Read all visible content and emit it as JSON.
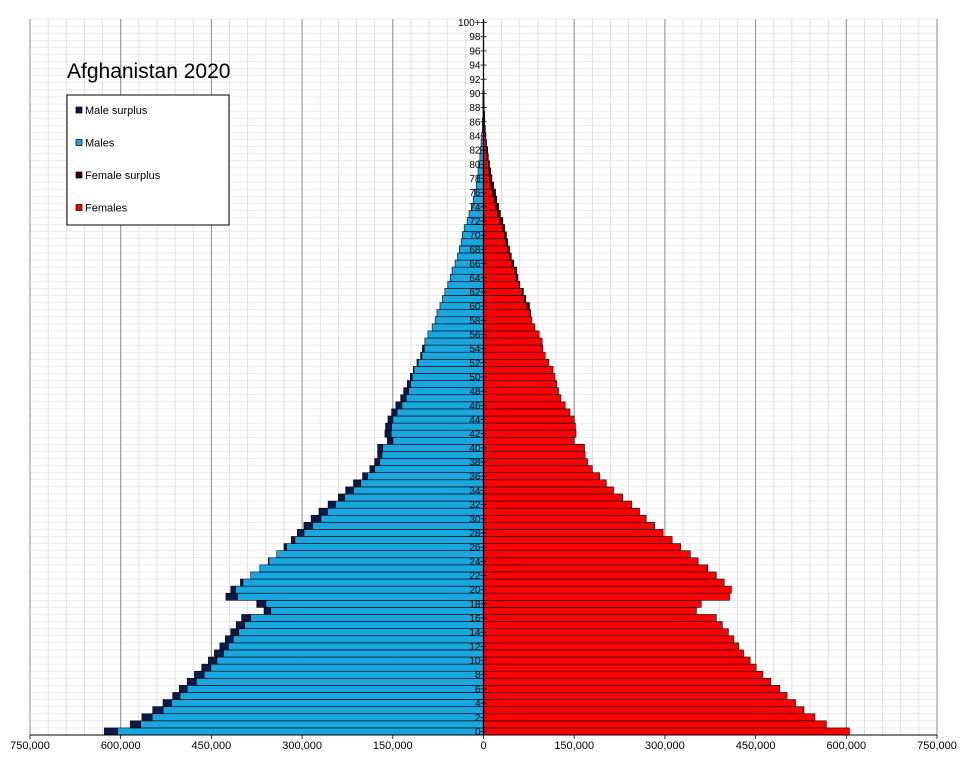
{
  "chart_data": {
    "type": "bar",
    "orientation": "horizontal",
    "title": "Afghanistan 2020",
    "xlim": [
      -750000,
      750000
    ],
    "x_ticks": [
      -750000,
      -600000,
      -450000,
      -300000,
      -150000,
      0,
      150000,
      300000,
      450000,
      600000,
      750000
    ],
    "x_tick_labels": [
      "750,000",
      "600,000",
      "450,000",
      "300,000",
      "150,000",
      "0",
      "150,000",
      "300,000",
      "450,000",
      "600,000",
      "750,000"
    ],
    "y_tick_labels": [
      "0",
      "2",
      "4",
      "6",
      "8",
      "10",
      "12",
      "14",
      "16",
      "18",
      "20",
      "22",
      "24",
      "26",
      "28",
      "30",
      "32",
      "34",
      "36",
      "38",
      "40",
      "42",
      "44",
      "46",
      "48",
      "50",
      "52",
      "54",
      "56",
      "58",
      "60",
      "62",
      "64",
      "66",
      "68",
      "70",
      "72",
      "74",
      "76",
      "78",
      "80",
      "82",
      "84",
      "86",
      "88",
      "90",
      "92",
      "94",
      "96",
      "98",
      "100+"
    ],
    "legend": {
      "position": "top-left",
      "entries": [
        {
          "label": "Male surplus",
          "color": "#0a1a4a"
        },
        {
          "label": "Males",
          "color": "#1aa7e0"
        },
        {
          "label": "Female surplus",
          "color": "#3a0000"
        },
        {
          "label": "Females",
          "color": "#ff0000"
        }
      ]
    },
    "colors": {
      "males": "#1aa7e0",
      "females": "#ff0000",
      "male_surplus": "#0a1a4a",
      "female_surplus": "#3a0000"
    },
    "grid": true,
    "ages": [
      0,
      1,
      2,
      3,
      4,
      5,
      6,
      7,
      8,
      9,
      10,
      11,
      12,
      13,
      14,
      15,
      16,
      17,
      18,
      19,
      20,
      21,
      22,
      23,
      24,
      25,
      26,
      27,
      28,
      29,
      30,
      31,
      32,
      33,
      34,
      35,
      36,
      37,
      38,
      39,
      40,
      41,
      42,
      43,
      44,
      45,
      46,
      47,
      48,
      49,
      50,
      51,
      52,
      53,
      54,
      55,
      56,
      57,
      58,
      59,
      60,
      61,
      62,
      63,
      64,
      65,
      66,
      67,
      68,
      69,
      70,
      71,
      72,
      73,
      74,
      75,
      76,
      77,
      78,
      79,
      80,
      81,
      82,
      83,
      84,
      85,
      86,
      87,
      88,
      89,
      90,
      91,
      92,
      93,
      94,
      95,
      96,
      97,
      98,
      99,
      100
    ],
    "series": [
      {
        "name": "Males",
        "values": [
          627000,
          584000,
          565000,
          547000,
          530000,
          514000,
          503000,
          490000,
          478000,
          466000,
          455000,
          445000,
          436000,
          427000,
          418000,
          409000,
          400000,
          363000,
          375000,
          426000,
          418000,
          402000,
          385000,
          370000,
          356000,
          342000,
          330000,
          318000,
          308000,
          297000,
          285000,
          272000,
          257000,
          240000,
          228000,
          215000,
          200000,
          188000,
          180000,
          175000,
          175000,
          159000,
          163000,
          162000,
          158000,
          152000,
          145000,
          137000,
          132000,
          126000,
          121000,
          116000,
          110000,
          104000,
          101000,
          97000,
          92000,
          85000,
          80000,
          77000,
          72000,
          68000,
          64000,
          59000,
          55000,
          52000,
          47000,
          43000,
          40000,
          37000,
          35000,
          32000,
          27000,
          24000,
          20000,
          17000,
          15000,
          12000,
          10000,
          9000,
          8000,
          6000,
          5000,
          4000,
          3000,
          2000,
          2000,
          1000,
          1000,
          1000,
          1000,
          0,
          0,
          0,
          0,
          0,
          0,
          0,
          0,
          0,
          0
        ]
      },
      {
        "name": "Females",
        "values": [
          605000,
          567000,
          548000,
          530000,
          516000,
          502000,
          490000,
          475000,
          462000,
          451000,
          441000,
          430000,
          422000,
          414000,
          405000,
          395000,
          385000,
          352000,
          360000,
          407000,
          410000,
          398000,
          385000,
          371000,
          355000,
          342000,
          326000,
          312000,
          297000,
          283000,
          269000,
          258000,
          245000,
          230000,
          215000,
          203000,
          192000,
          180000,
          172000,
          168000,
          167000,
          150000,
          153000,
          152000,
          150000,
          143000,
          135000,
          128000,
          124000,
          121000,
          118000,
          115000,
          108000,
          102000,
          98000,
          97000,
          92000,
          85000,
          80000,
          78000,
          76000,
          70000,
          66000,
          60000,
          57000,
          55000,
          50000,
          46000,
          43000,
          40000,
          38000,
          35000,
          32000,
          28000,
          25000,
          22000,
          20000,
          17000,
          14000,
          12000,
          10000,
          8000,
          7000,
          5000,
          4000,
          3000,
          2000,
          2000,
          1000,
          1000,
          1000,
          0,
          0,
          0,
          0,
          0,
          0,
          0,
          0,
          0,
          0
        ]
      }
    ]
  }
}
